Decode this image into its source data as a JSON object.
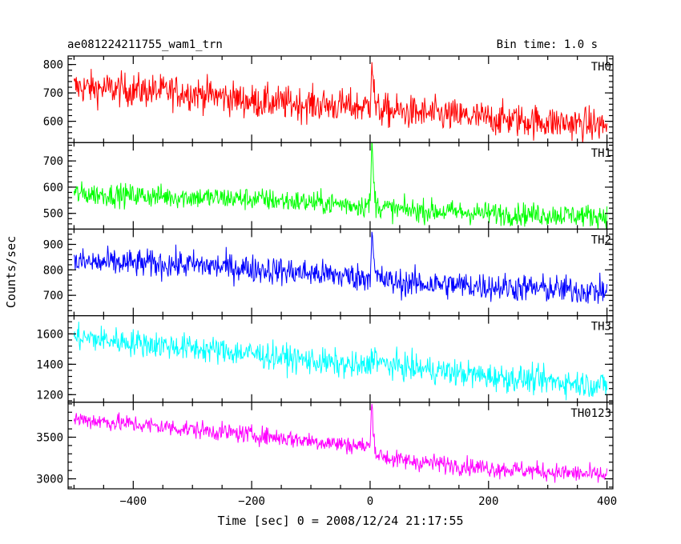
{
  "chart_data": {
    "type": "line",
    "title": "ae081224211755_wam1_trn",
    "subtitle": "Bin time: 1.0 s",
    "xlabel": "Time [sec] 0 = 2008/12/24 21:17:55",
    "ylabel": "Counts/sec",
    "xlim": [
      -510,
      410
    ],
    "x_ticks": [
      -400,
      -200,
      0,
      200,
      400
    ],
    "x_step": 1,
    "series": [
      {
        "name": "TH0",
        "color": "#ff0000",
        "ylim": [
          525,
          830
        ],
        "y_ticks": [
          600,
          700,
          800
        ],
        "trend": {
          "x": [
            -500,
            -300,
            -260,
            -200,
            -10,
            0,
            3,
            6,
            10,
            40,
            200,
            400
          ],
          "y": [
            720,
            700,
            690,
            670,
            650,
            660,
            830,
            720,
            640,
            635,
            610,
            585
          ]
        },
        "noise": 30
      },
      {
        "name": "TH1",
        "color": "#00ff00",
        "ylim": [
          440,
          770
        ],
        "y_ticks": [
          500,
          600,
          700
        ],
        "trend": {
          "x": [
            -500,
            -200,
            -10,
            0,
            3,
            6,
            10,
            40,
            200,
            400
          ],
          "y": [
            575,
            555,
            530,
            535,
            770,
            620,
            530,
            515,
            500,
            490
          ]
        },
        "noise": 22
      },
      {
        "name": "TH2",
        "color": "#0000ff",
        "ylim": [
          620,
          960
        ],
        "y_ticks": [
          700,
          800,
          900
        ],
        "trend": {
          "x": [
            -500,
            -300,
            -200,
            -10,
            0,
            3,
            6,
            10,
            40,
            200,
            400
          ],
          "y": [
            830,
            820,
            805,
            770,
            780,
            960,
            830,
            770,
            750,
            735,
            715
          ]
        },
        "noise": 28
      },
      {
        "name": "TH3",
        "color": "#00ffff",
        "ylim": [
          1150,
          1720
        ],
        "y_ticks": [
          1200,
          1400,
          1600
        ],
        "trend": {
          "x": [
            -500,
            -200,
            -10,
            0,
            5,
            20,
            200,
            400
          ],
          "y": [
            1580,
            1470,
            1380,
            1400,
            1470,
            1400,
            1320,
            1260
          ]
        },
        "noise": 45
      },
      {
        "name": "TH0123",
        "color": "#ff00ff",
        "ylim": [
          2880,
          3920
        ],
        "y_ticks": [
          3000,
          3500
        ],
        "trend": {
          "x": [
            -500,
            -200,
            -10,
            0,
            3,
            6,
            10,
            40,
            200,
            400
          ],
          "y": [
            3720,
            3530,
            3390,
            3400,
            3920,
            3550,
            3300,
            3230,
            3130,
            3040
          ]
        },
        "noise": 55
      }
    ]
  }
}
